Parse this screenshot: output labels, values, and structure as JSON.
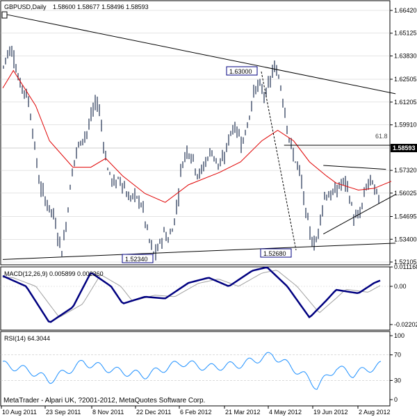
{
  "header": {
    "symbol": "GBPUSD,Daily",
    "ohlc": "1.58600 1.58677 1.58496 1.58593"
  },
  "price_axis": {
    "ticks": [
      "1.66420",
      "1.65125",
      "1.63830",
      "1.62505",
      "1.61205",
      "1.59910",
      "1.57320",
      "1.56025",
      "1.54695",
      "1.53400",
      "1.52105"
    ],
    "current_price": "1.58593"
  },
  "annotations": {
    "high_label": "1.63000",
    "low_left_label": "1.52340",
    "low_right_label": "1.52680",
    "fib_label": "61.8"
  },
  "macd": {
    "title": "MACD(12,26,9) 0.005899 0.002360",
    "ticks": [
      "0.011168",
      "0.00",
      "-0.022021"
    ]
  },
  "rsi": {
    "title": "RSI(14) 64.3044",
    "ticks": [
      "100",
      "70",
      "30",
      "0"
    ]
  },
  "time_axis": {
    "labels": [
      "10 Aug 2011",
      "23 Sep 2011",
      "8 Nov 2011",
      "22 Dec 2011",
      "6 Feb 2012",
      "21 Mar 2012",
      "4 May 2012",
      "19 Jun 2012",
      "2 Aug 2012"
    ]
  },
  "footer": {
    "copyright": "MetaTrader - Alpari UK, ?2001-2012, MetaQuotes Software Corp."
  },
  "colors": {
    "bars": "#1f2f4f",
    "ma": "#e00000",
    "macd_line": "#000080",
    "signal_line": "#a0a0a0",
    "rsi_line": "#1e90ff",
    "grid": "#c8c8c8",
    "box_border": "#000080"
  },
  "chart_data": {
    "type": "candlestick",
    "instrument": "GBPUSD,Daily",
    "ylim": [
      1.521,
      1.6642
    ],
    "price_points": [
      {
        "date": "2011-08-10",
        "close": 1.625
      },
      {
        "date": "2011-08-20",
        "close": 1.645
      },
      {
        "date": "2011-09-05",
        "close": 1.6
      },
      {
        "date": "2011-09-23",
        "close": 1.545
      },
      {
        "date": "2011-10-05",
        "close": 1.535
      },
      {
        "date": "2011-10-25",
        "close": 1.6
      },
      {
        "date": "2011-11-08",
        "close": 1.605
      },
      {
        "date": "2011-11-25",
        "close": 1.56
      },
      {
        "date": "2011-12-10",
        "close": 1.565
      },
      {
        "date": "2011-12-22",
        "close": 1.54
      },
      {
        "date": "2012-01-03",
        "close": 1.53
      },
      {
        "date": "2012-01-13",
        "close": 1.53
      },
      {
        "date": "2012-01-25",
        "close": 1.575
      },
      {
        "date": "2012-02-06",
        "close": 1.58
      },
      {
        "date": "2012-02-20",
        "close": 1.575
      },
      {
        "date": "2012-03-05",
        "close": 1.585
      },
      {
        "date": "2012-03-21",
        "close": 1.595
      },
      {
        "date": "2012-04-10",
        "close": 1.62
      },
      {
        "date": "2012-04-20",
        "close": 1.63
      },
      {
        "date": "2012-05-04",
        "close": 1.605
      },
      {
        "date": "2012-05-20",
        "close": 1.55
      },
      {
        "date": "2012-06-01",
        "close": 1.535
      },
      {
        "date": "2012-06-10",
        "close": 1.555
      },
      {
        "date": "2012-06-19",
        "close": 1.57
      },
      {
        "date": "2012-07-05",
        "close": 1.55
      },
      {
        "date": "2012-07-20",
        "close": 1.56
      },
      {
        "date": "2012-08-02",
        "close": 1.565
      },
      {
        "date": "2012-08-10",
        "close": 1.5859
      }
    ],
    "ma_points": [
      {
        "date": "2011-08-10",
        "value": 1.62
      },
      {
        "date": "2011-08-20",
        "value": 1.63
      },
      {
        "date": "2011-09-10",
        "value": 1.61
      },
      {
        "date": "2011-09-23",
        "value": 1.59
      },
      {
        "date": "2011-10-15",
        "value": 1.575
      },
      {
        "date": "2011-11-01",
        "value": 1.575
      },
      {
        "date": "2011-11-15",
        "value": 1.58
      },
      {
        "date": "2011-12-01",
        "value": 1.57
      },
      {
        "date": "2011-12-22",
        "value": 1.56
      },
      {
        "date": "2012-01-10",
        "value": 1.555
      },
      {
        "date": "2012-02-01",
        "value": 1.565
      },
      {
        "date": "2012-03-01",
        "value": 1.572
      },
      {
        "date": "2012-03-21",
        "value": 1.578
      },
      {
        "date": "2012-04-10",
        "value": 1.59
      },
      {
        "date": "2012-04-25",
        "value": 1.596
      },
      {
        "date": "2012-05-10",
        "value": 1.59
      },
      {
        "date": "2012-05-25",
        "value": 1.578
      },
      {
        "date": "2012-06-10",
        "value": 1.57
      },
      {
        "date": "2012-06-19",
        "value": 1.566
      },
      {
        "date": "2012-07-10",
        "value": 1.562
      },
      {
        "date": "2012-07-25",
        "value": 1.563
      },
      {
        "date": "2012-08-10",
        "value": 1.567
      }
    ],
    "trendlines": [
      {
        "name": "upper-resistance",
        "from": {
          "date": "2011-08-10",
          "price": 1.6623
        },
        "to": {
          "date": "2012-08-14",
          "price": 1.6168
        }
      },
      {
        "name": "lower-support",
        "from": {
          "date": "2011-08-10",
          "price": 1.5225
        },
        "to": {
          "date": "2012-08-14",
          "price": 1.5318
        }
      },
      {
        "name": "triangle-upper",
        "from": {
          "date": "2012-06-07",
          "price": 1.576
        },
        "to": {
          "date": "2012-08-05",
          "price": 1.5738
        }
      },
      {
        "name": "triangle-lower",
        "from": {
          "date": "2012-06-07",
          "price": 1.537
        },
        "to": {
          "date": "2012-08-14",
          "price": 1.5595
        }
      },
      {
        "name": "fib-61.8",
        "from": {
          "date": "2012-05-01",
          "price": 1.5875
        },
        "to": {
          "date": "2012-08-14",
          "price": 1.5875
        }
      }
    ],
    "macd_points": [
      {
        "date": "2011-08-10",
        "value": 0.006
      },
      {
        "date": "2011-09-01",
        "value": 0.0
      },
      {
        "date": "2011-09-23",
        "value": -0.021
      },
      {
        "date": "2011-10-15",
        "value": -0.012
      },
      {
        "date": "2011-11-01",
        "value": 0.008
      },
      {
        "date": "2011-11-20",
        "value": 0.0
      },
      {
        "date": "2011-12-01",
        "value": -0.01
      },
      {
        "date": "2011-12-22",
        "value": -0.006
      },
      {
        "date": "2012-01-10",
        "value": -0.007
      },
      {
        "date": "2012-02-01",
        "value": 0.002
      },
      {
        "date": "2012-02-20",
        "value": 0.005
      },
      {
        "date": "2012-03-10",
        "value": 0.0
      },
      {
        "date": "2012-04-01",
        "value": 0.009
      },
      {
        "date": "2012-04-15",
        "value": 0.011
      },
      {
        "date": "2012-05-04",
        "value": 0.0
      },
      {
        "date": "2012-05-25",
        "value": -0.018
      },
      {
        "date": "2012-06-10",
        "value": -0.008
      },
      {
        "date": "2012-06-19",
        "value": -0.002
      },
      {
        "date": "2012-07-10",
        "value": -0.004
      },
      {
        "date": "2012-07-25",
        "value": 0.002
      },
      {
        "date": "2012-08-10",
        "value": 0.0059
      }
    ],
    "rsi_points": [
      {
        "date": "2011-08-10",
        "value": 55
      },
      {
        "date": "2011-09-05",
        "value": 45
      },
      {
        "date": "2011-09-23",
        "value": 30
      },
      {
        "date": "2011-10-25",
        "value": 58
      },
      {
        "date": "2011-11-25",
        "value": 45
      },
      {
        "date": "2011-12-22",
        "value": 38
      },
      {
        "date": "2012-01-25",
        "value": 58
      },
      {
        "date": "2012-02-20",
        "value": 50
      },
      {
        "date": "2012-03-21",
        "value": 55
      },
      {
        "date": "2012-04-20",
        "value": 70
      },
      {
        "date": "2012-05-20",
        "value": 38
      },
      {
        "date": "2012-06-01",
        "value": 20
      },
      {
        "date": "2012-06-19",
        "value": 50
      },
      {
        "date": "2012-07-05",
        "value": 40
      },
      {
        "date": "2012-08-02",
        "value": 55
      },
      {
        "date": "2012-08-10",
        "value": 64.3
      }
    ]
  }
}
